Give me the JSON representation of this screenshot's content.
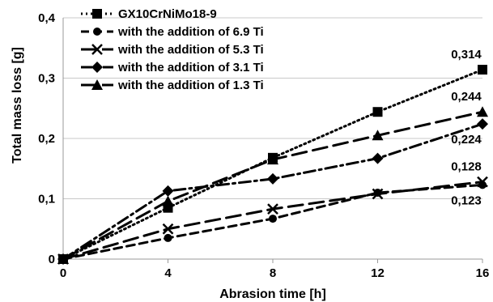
{
  "chart_data": {
    "type": "line",
    "title": "",
    "xlabel": "Abrasion time [h]",
    "ylabel": "Total mass loss [g]",
    "xlim": [
      0,
      16
    ],
    "ylim": [
      0,
      0.4
    ],
    "x": [
      0,
      4,
      8,
      12,
      16
    ],
    "x_ticks": [
      "0",
      "4",
      "8",
      "12",
      "16"
    ],
    "y_ticks": [
      "0",
      "0,1",
      "0,2",
      "0,3",
      "0,4"
    ],
    "grid": "horizontal",
    "legend_position": "top-left",
    "series": [
      {
        "name": "GX10CrNiMo18-9",
        "marker": "square",
        "dash": "dotted",
        "color": "#000000",
        "values": [
          0,
          0.085,
          0.168,
          0.244,
          0.314
        ],
        "end_label": "0,314"
      },
      {
        "name": "with the addition of 6.9 Ti",
        "marker": "circle",
        "dash": "dashed",
        "color": "#000000",
        "values": [
          0,
          0.035,
          0.067,
          0.11,
          0.123
        ],
        "end_label": "0,123"
      },
      {
        "name": "with the addition of 5.3 Ti",
        "marker": "x",
        "dash": "long-dash",
        "color": "#000000",
        "values": [
          0,
          0.05,
          0.083,
          0.108,
          0.128
        ],
        "end_label": "0,128"
      },
      {
        "name": "with the addition of 3.1 Ti",
        "marker": "diamond",
        "dash": "dash-dot",
        "color": "#000000",
        "values": [
          0,
          0.113,
          0.133,
          0.167,
          0.224
        ],
        "end_label": "0,224"
      },
      {
        "name": "with the addition of 1.3 Ti",
        "marker": "triangle",
        "dash": "long-dash",
        "color": "#000000",
        "values": [
          0,
          0.096,
          0.165,
          0.205,
          0.244
        ],
        "end_label": "0,244"
      }
    ]
  }
}
